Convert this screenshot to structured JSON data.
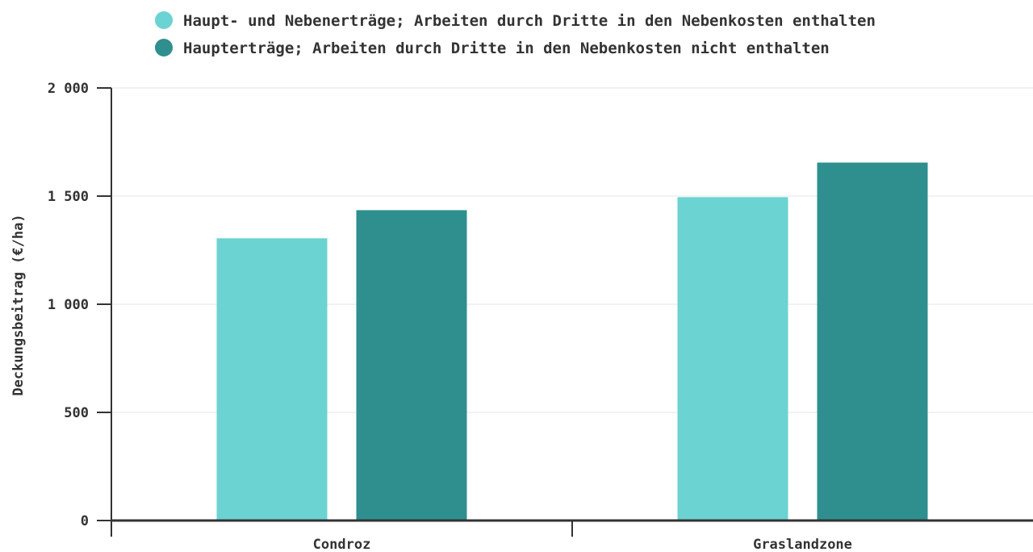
{
  "chart_data": {
    "type": "bar",
    "categories": [
      "Condroz",
      "Graslandzone"
    ],
    "series": [
      {
        "name": "Haupt- und Nebenerträge; Arbeiten durch Dritte in den Nebenkosten enthalten",
        "values": [
          1305,
          1495
        ],
        "color": "#6bd3d2"
      },
      {
        "name": "Haupterträge; Arbeiten durch Dritte in den Nebenkosten nicht enthalten",
        "values": [
          1435,
          1655
        ],
        "color": "#2e8f8e"
      }
    ],
    "ylabel": "Deckungsbeitrag (€/ha)",
    "xlabel": "",
    "ylim": [
      0,
      2000
    ],
    "yticks": [
      0,
      500,
      1000,
      1500,
      2000
    ],
    "ytick_labels": [
      "0",
      "500",
      "1 000",
      "1 500",
      "2 000"
    ],
    "grid": true,
    "legend_position": "top"
  }
}
